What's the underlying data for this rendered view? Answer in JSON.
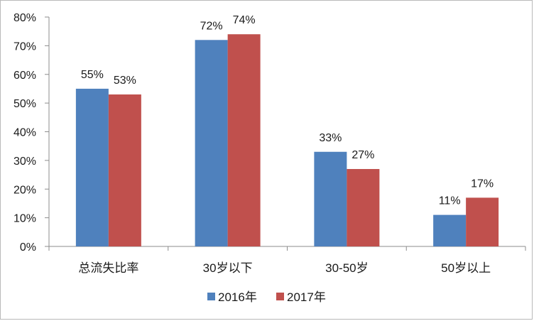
{
  "chart_data": {
    "type": "bar",
    "categories": [
      "总流失比率",
      "30岁以下",
      "30-50岁",
      "50岁以上"
    ],
    "series": [
      {
        "name": "2016年",
        "values": [
          55,
          72,
          33,
          11
        ],
        "labels": [
          "55%",
          "72%",
          "33%",
          "11%"
        ],
        "color": "#4f81bd"
      },
      {
        "name": "2017年",
        "values": [
          53,
          74,
          27,
          17
        ],
        "labels": [
          "53%",
          "74%",
          "27%",
          "17%"
        ],
        "color": "#c0504d"
      }
    ],
    "y_ticks": [
      "0%",
      "10%",
      "20%",
      "30%",
      "40%",
      "50%",
      "60%",
      "70%",
      "80%"
    ],
    "ylim": [
      0,
      80
    ],
    "grid": false,
    "legend_position": "bottom"
  }
}
